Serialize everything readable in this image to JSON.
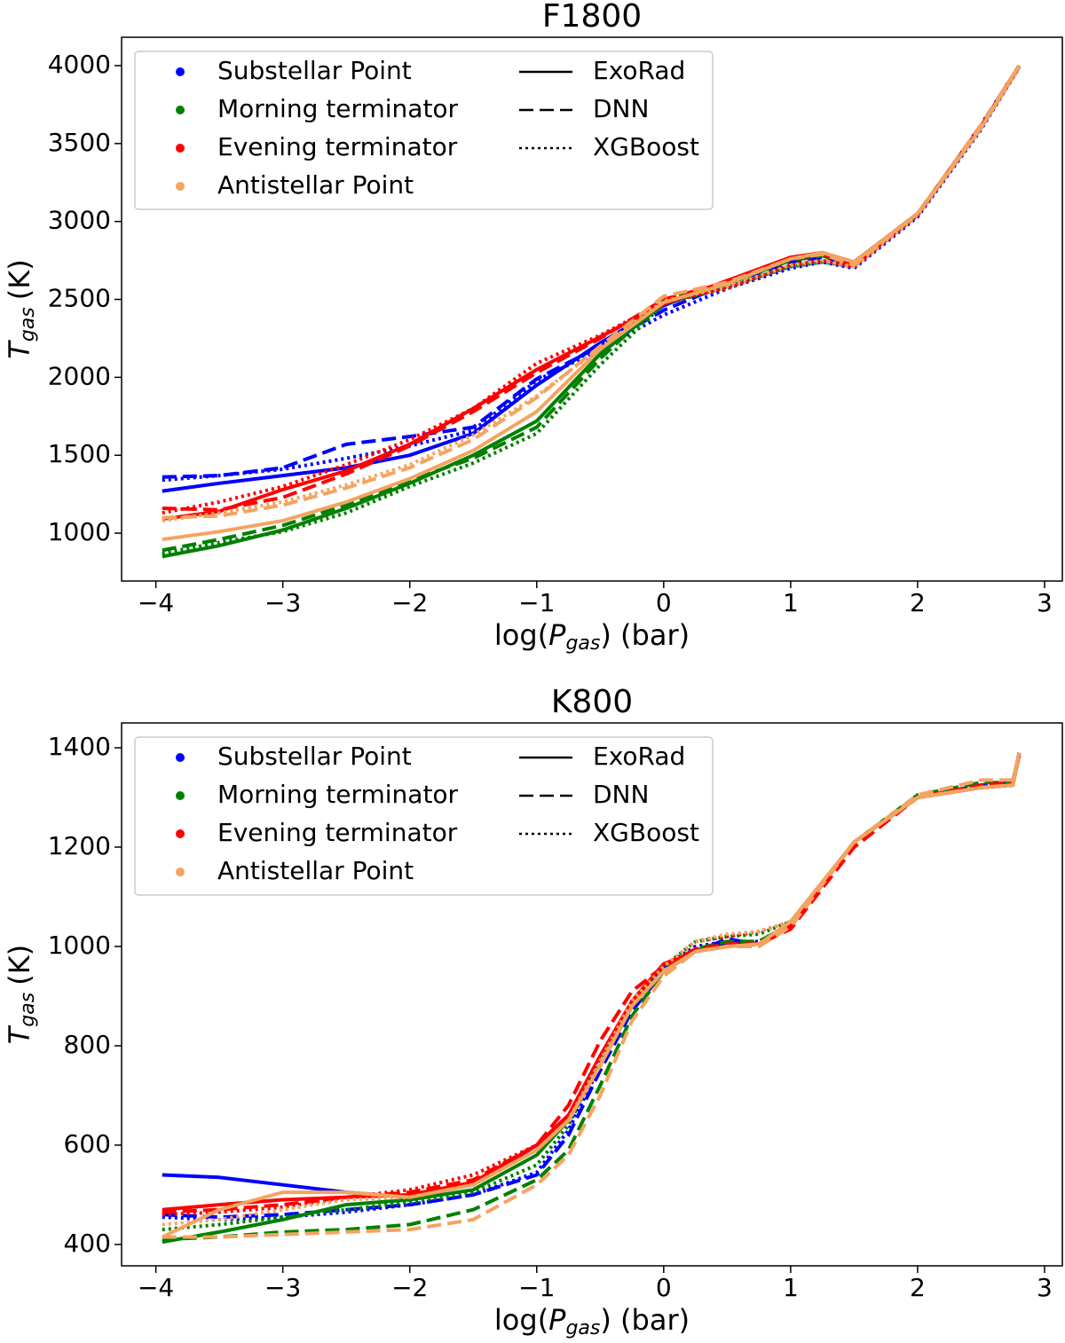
{
  "chart_data": [
    {
      "type": "line",
      "title": "F1800",
      "xlabel": {
        "prefix": "log(",
        "symbol": "P",
        "subscript": "gas",
        "suffix": ") (bar)"
      },
      "ylabel": {
        "symbol": "T",
        "subscript": "gas",
        "unit": "(K)"
      },
      "xlim": [
        -4.27,
        3.14
      ],
      "ylim": [
        693,
        4182
      ],
      "xticks": [
        {
          "value": -4,
          "label": "−4"
        },
        {
          "value": -3,
          "label": "−3"
        },
        {
          "value": -2,
          "label": "−2"
        },
        {
          "value": -1,
          "label": "−1"
        },
        0,
        1,
        2,
        3
      ],
      "yticks": [
        1000,
        1500,
        2000,
        2500,
        3000,
        3500,
        4000
      ],
      "legend": "upper left",
      "models": [
        {
          "name": "ExoRad",
          "linestyle": "solid"
        },
        {
          "name": "DNN",
          "linestyle": "dashed"
        },
        {
          "name": "XGBoost",
          "linestyle": "dotted"
        }
      ],
      "x": [
        -3.95,
        -3.5,
        -3,
        -2.5,
        -2,
        -1.5,
        -1,
        -0.5,
        0,
        0.5,
        1,
        1.25,
        1.5,
        2,
        2.5,
        2.8
      ],
      "series": [
        {
          "name": "Substellar Point",
          "color": "#0000ff",
          "models": [
            {
              "values": [
                1270,
                1320,
                1370,
                1420,
                1500,
                1640,
                1950,
                2220,
                2460,
                2620,
                2750,
                2780,
                2740,
                3050,
                3600,
                4000
              ]
            },
            {
              "values": [
                1360,
                1370,
                1420,
                1570,
                1620,
                1680,
                1990,
                2200,
                2430,
                2600,
                2740,
                2770,
                2720,
                3040,
                3620,
                4000
              ]
            },
            {
              "values": [
                1340,
                1370,
                1410,
                1480,
                1560,
                1660,
                1980,
                2180,
                2400,
                2570,
                2700,
                2740,
                2700,
                3030,
                3590,
                3990
              ]
            }
          ]
        },
        {
          "name": "Morning terminator",
          "color": "#008000",
          "models": [
            {
              "values": [
                850,
                920,
                1020,
                1160,
                1320,
                1500,
                1720,
                2150,
                2470,
                2600,
                2760,
                2790,
                2740,
                3050,
                3600,
                4000
              ]
            },
            {
              "values": [
                890,
                960,
                1050,
                1180,
                1340,
                1480,
                1680,
                2120,
                2500,
                2600,
                2750,
                2780,
                2720,
                3050,
                3610,
                4000
              ]
            },
            {
              "values": [
                870,
                940,
                1010,
                1130,
                1300,
                1450,
                1640,
                2080,
                2470,
                2580,
                2710,
                2740,
                2710,
                3040,
                3600,
                3990
              ]
            }
          ]
        },
        {
          "name": "Evening terminator",
          "color": "#ff0000",
          "models": [
            {
              "values": [
                1090,
                1140,
                1280,
                1400,
                1570,
                1800,
                2050,
                2260,
                2470,
                2620,
                2770,
                2800,
                2740,
                3050,
                3600,
                4000
              ]
            },
            {
              "values": [
                1160,
                1150,
                1230,
                1380,
                1560,
                1780,
                2030,
                2250,
                2500,
                2610,
                2760,
                2790,
                2720,
                3050,
                3610,
                4000
              ]
            },
            {
              "values": [
                1130,
                1200,
                1300,
                1440,
                1600,
                1800,
                2090,
                2270,
                2480,
                2570,
                2720,
                2750,
                2710,
                3040,
                3600,
                3990
              ]
            }
          ]
        },
        {
          "name": "Antistellar Point",
          "color": "#f4a460",
          "models": [
            {
              "values": [
                960,
                1010,
                1080,
                1200,
                1350,
                1530,
                1780,
                2180,
                2480,
                2600,
                2760,
                2800,
                2740,
                3050,
                3600,
                4000
              ]
            },
            {
              "values": [
                1100,
                1110,
                1180,
                1290,
                1420,
                1600,
                1870,
                2200,
                2520,
                2610,
                2760,
                2790,
                2720,
                3050,
                3620,
                4000
              ]
            },
            {
              "values": [
                1080,
                1130,
                1200,
                1310,
                1440,
                1630,
                1880,
                2190,
                2490,
                2580,
                2720,
                2750,
                2710,
                3040,
                3600,
                3990
              ]
            }
          ]
        }
      ]
    },
    {
      "type": "line",
      "title": "K800",
      "xlabel": {
        "prefix": "log(",
        "symbol": "P",
        "subscript": "gas",
        "suffix": ") (bar)"
      },
      "ylabel": {
        "symbol": "T",
        "subscript": "gas",
        "unit": "(K)"
      },
      "xlim": [
        -4.27,
        3.14
      ],
      "ylim": [
        357,
        1450
      ],
      "xticks": [
        {
          "value": -4,
          "label": "−4"
        },
        {
          "value": -3,
          "label": "−3"
        },
        {
          "value": -2,
          "label": "−2"
        },
        {
          "value": -1,
          "label": "−1"
        },
        0,
        1,
        2,
        3
      ],
      "yticks": [
        400,
        600,
        800,
        1000,
        1200,
        1400
      ],
      "legend": "upper left",
      "models": [
        {
          "name": "ExoRad",
          "linestyle": "solid"
        },
        {
          "name": "DNN",
          "linestyle": "dashed"
        },
        {
          "name": "XGBoost",
          "linestyle": "dotted"
        }
      ],
      "x": [
        -3.95,
        -3.5,
        -3,
        -2.5,
        -2,
        -1.5,
        -1,
        -0.75,
        -0.5,
        -0.25,
        0,
        0.25,
        0.5,
        0.75,
        1,
        1.5,
        2,
        2.5,
        2.75,
        2.8
      ],
      "series": [
        {
          "name": "Substellar Point",
          "color": "#0000ff",
          "models": [
            {
              "values": [
                540,
                535,
                520,
                505,
                495,
                520,
                600,
                660,
                760,
                880,
                960,
                990,
                1005,
                1005,
                1040,
                1210,
                1300,
                1320,
                1325,
                1390
              ]
            },
            {
              "values": [
                460,
                455,
                460,
                470,
                480,
                500,
                540,
                620,
                750,
                870,
                950,
                990,
                1015,
                1005,
                1040,
                1210,
                1300,
                1325,
                1330,
                1385
              ]
            },
            {
              "values": [
                455,
                450,
                455,
                465,
                480,
                500,
                545,
                630,
                760,
                880,
                960,
                1000,
                1010,
                1010,
                1045,
                1210,
                1300,
                1320,
                1325,
                1385
              ]
            }
          ]
        },
        {
          "name": "Morning terminator",
          "color": "#008000",
          "models": [
            {
              "values": [
                405,
                425,
                450,
                480,
                490,
                510,
                580,
                650,
                760,
                880,
                950,
                990,
                1000,
                1005,
                1040,
                1210,
                1300,
                1320,
                1325,
                1390
              ]
            },
            {
              "values": [
                410,
                415,
                425,
                430,
                440,
                470,
                530,
                590,
                720,
                860,
                950,
                995,
                1010,
                1010,
                1045,
                1210,
                1305,
                1330,
                1330,
                1385
              ]
            },
            {
              "values": [
                430,
                440,
                455,
                470,
                485,
                505,
                560,
                640,
                770,
                890,
                960,
                1010,
                1020,
                1025,
                1050,
                1210,
                1300,
                1320,
                1325,
                1385
              ]
            }
          ]
        },
        {
          "name": "Evening terminator",
          "color": "#ff0000",
          "models": [
            {
              "values": [
                470,
                480,
                490,
                495,
                500,
                525,
                600,
                660,
                780,
                890,
                965,
                990,
                1000,
                1005,
                1040,
                1210,
                1300,
                1320,
                1325,
                1390
              ]
            },
            {
              "values": [
                465,
                470,
                480,
                495,
                505,
                530,
                600,
                680,
                810,
                910,
                960,
                995,
                1005,
                1005,
                1035,
                1200,
                1300,
                1325,
                1330,
                1385
              ]
            },
            {
              "values": [
                460,
                465,
                475,
                495,
                510,
                540,
                600,
                660,
                780,
                890,
                960,
                1010,
                1020,
                1030,
                1050,
                1210,
                1300,
                1320,
                1325,
                1385
              ]
            }
          ]
        },
        {
          "name": "Antistellar Point",
          "color": "#f4a460",
          "models": [
            {
              "values": [
                415,
                470,
                505,
                505,
                495,
                520,
                590,
                650,
                760,
                880,
                950,
                990,
                1000,
                1005,
                1050,
                1210,
                1300,
                1320,
                1325,
                1390
              ]
            },
            {
              "values": [
                415,
                415,
                420,
                425,
                430,
                450,
                520,
                580,
                700,
                850,
                940,
                990,
                1000,
                1000,
                1040,
                1210,
                1305,
                1335,
                1335,
                1390
              ]
            },
            {
              "values": [
                440,
                450,
                470,
                490,
                495,
                520,
                590,
                650,
                770,
                890,
                960,
                1010,
                1025,
                1030,
                1050,
                1210,
                1300,
                1320,
                1325,
                1385
              ]
            }
          ]
        }
      ]
    }
  ]
}
